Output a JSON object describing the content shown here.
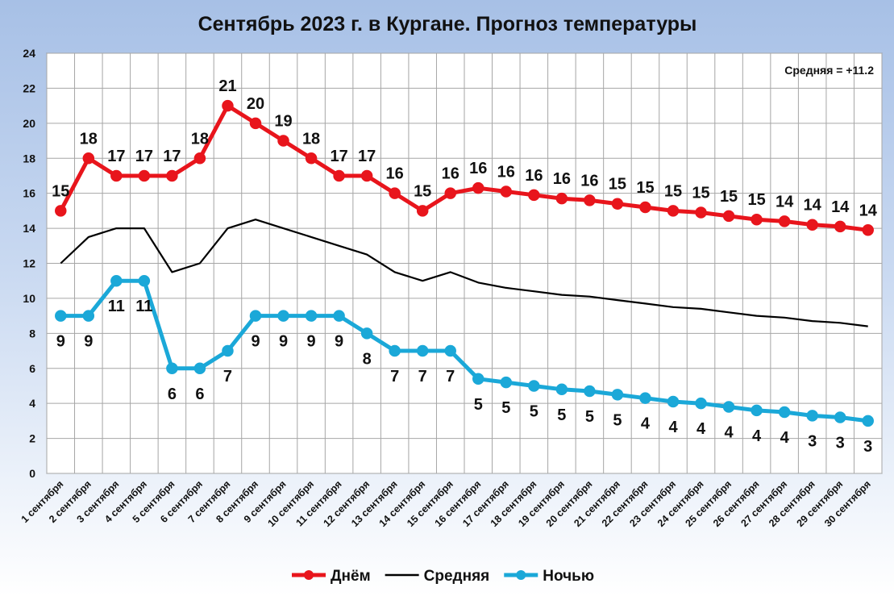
{
  "chart_data": {
    "type": "line",
    "title": "Сентябрь 2023 г. в Кургане. Прогноз температуры",
    "annotation": "Средняя = +11.2",
    "categories": [
      "1 сентября",
      "2 сентября",
      "3 сентября",
      "4 сентября",
      "5 сентября",
      "6 сентября",
      "7 сентября",
      "8 сентября",
      "9 сентября",
      "10 сентября",
      "11 сентября",
      "12 сентября",
      "13 сентября",
      "14 сентября",
      "15 сентября",
      "16 сентября",
      "17 сентября",
      "18 сентября",
      "19 сентября",
      "20 сентября",
      "21 сентября",
      "22 сентября",
      "23 сентября",
      "24 сентября",
      "25 сентября",
      "26 сентября",
      "27 сентября",
      "28 сентября",
      "29 сентября",
      "30 сентября"
    ],
    "ylim": [
      0,
      24
    ],
    "yticks": [
      0,
      2,
      4,
      6,
      8,
      10,
      12,
      14,
      16,
      18,
      20,
      22,
      24
    ],
    "grid": true,
    "legend_position": "bottom",
    "series": [
      {
        "name": "Днём",
        "color": "#e8151c",
        "marker": "circle",
        "values": [
          15,
          18,
          17,
          17,
          17,
          18,
          21,
          20,
          19,
          18,
          17,
          17,
          16,
          15,
          16,
          16.3,
          16.1,
          15.9,
          15.7,
          15.6,
          15.4,
          15.2,
          15.0,
          14.9,
          14.7,
          14.5,
          14.4,
          14.2,
          14.1,
          13.9
        ],
        "labels": [
          "15",
          "18",
          "17",
          "17",
          "17",
          "18",
          "21",
          "20",
          "19",
          "18",
          "17",
          "17",
          "16",
          "15",
          "16",
          "16",
          "16",
          "16",
          "16",
          "16",
          "15",
          "15",
          "15",
          "15",
          "15",
          "15",
          "14",
          "14",
          "14",
          "14"
        ]
      },
      {
        "name": "Средняя",
        "color": "#000000",
        "marker": "none",
        "values": [
          12,
          13.5,
          14,
          14,
          11.5,
          12,
          14,
          14.5,
          14,
          13.5,
          13,
          12.5,
          11.5,
          11,
          11.5,
          10.9,
          10.6,
          10.4,
          10.2,
          10.1,
          9.9,
          9.7,
          9.5,
          9.4,
          9.2,
          9.0,
          8.9,
          8.7,
          8.6,
          8.4
        ]
      },
      {
        "name": "Ночью",
        "color": "#1ba8d8",
        "marker": "circle",
        "values": [
          9,
          9,
          11,
          11,
          6,
          6,
          7,
          9,
          9,
          9,
          9,
          8,
          7,
          7,
          7,
          5.4,
          5.2,
          5.0,
          4.8,
          4.7,
          4.5,
          4.3,
          4.1,
          4.0,
          3.8,
          3.6,
          3.5,
          3.3,
          3.2,
          3.0
        ],
        "labels": [
          "9",
          "9",
          "11",
          "11",
          "6",
          "6",
          "7",
          "9",
          "9",
          "9",
          "9",
          "8",
          "7",
          "7",
          "7",
          "5",
          "5",
          "5",
          "5",
          "5",
          "5",
          "4",
          "4",
          "4",
          "4",
          "4",
          "4",
          "3",
          "3",
          "3"
        ]
      }
    ]
  }
}
